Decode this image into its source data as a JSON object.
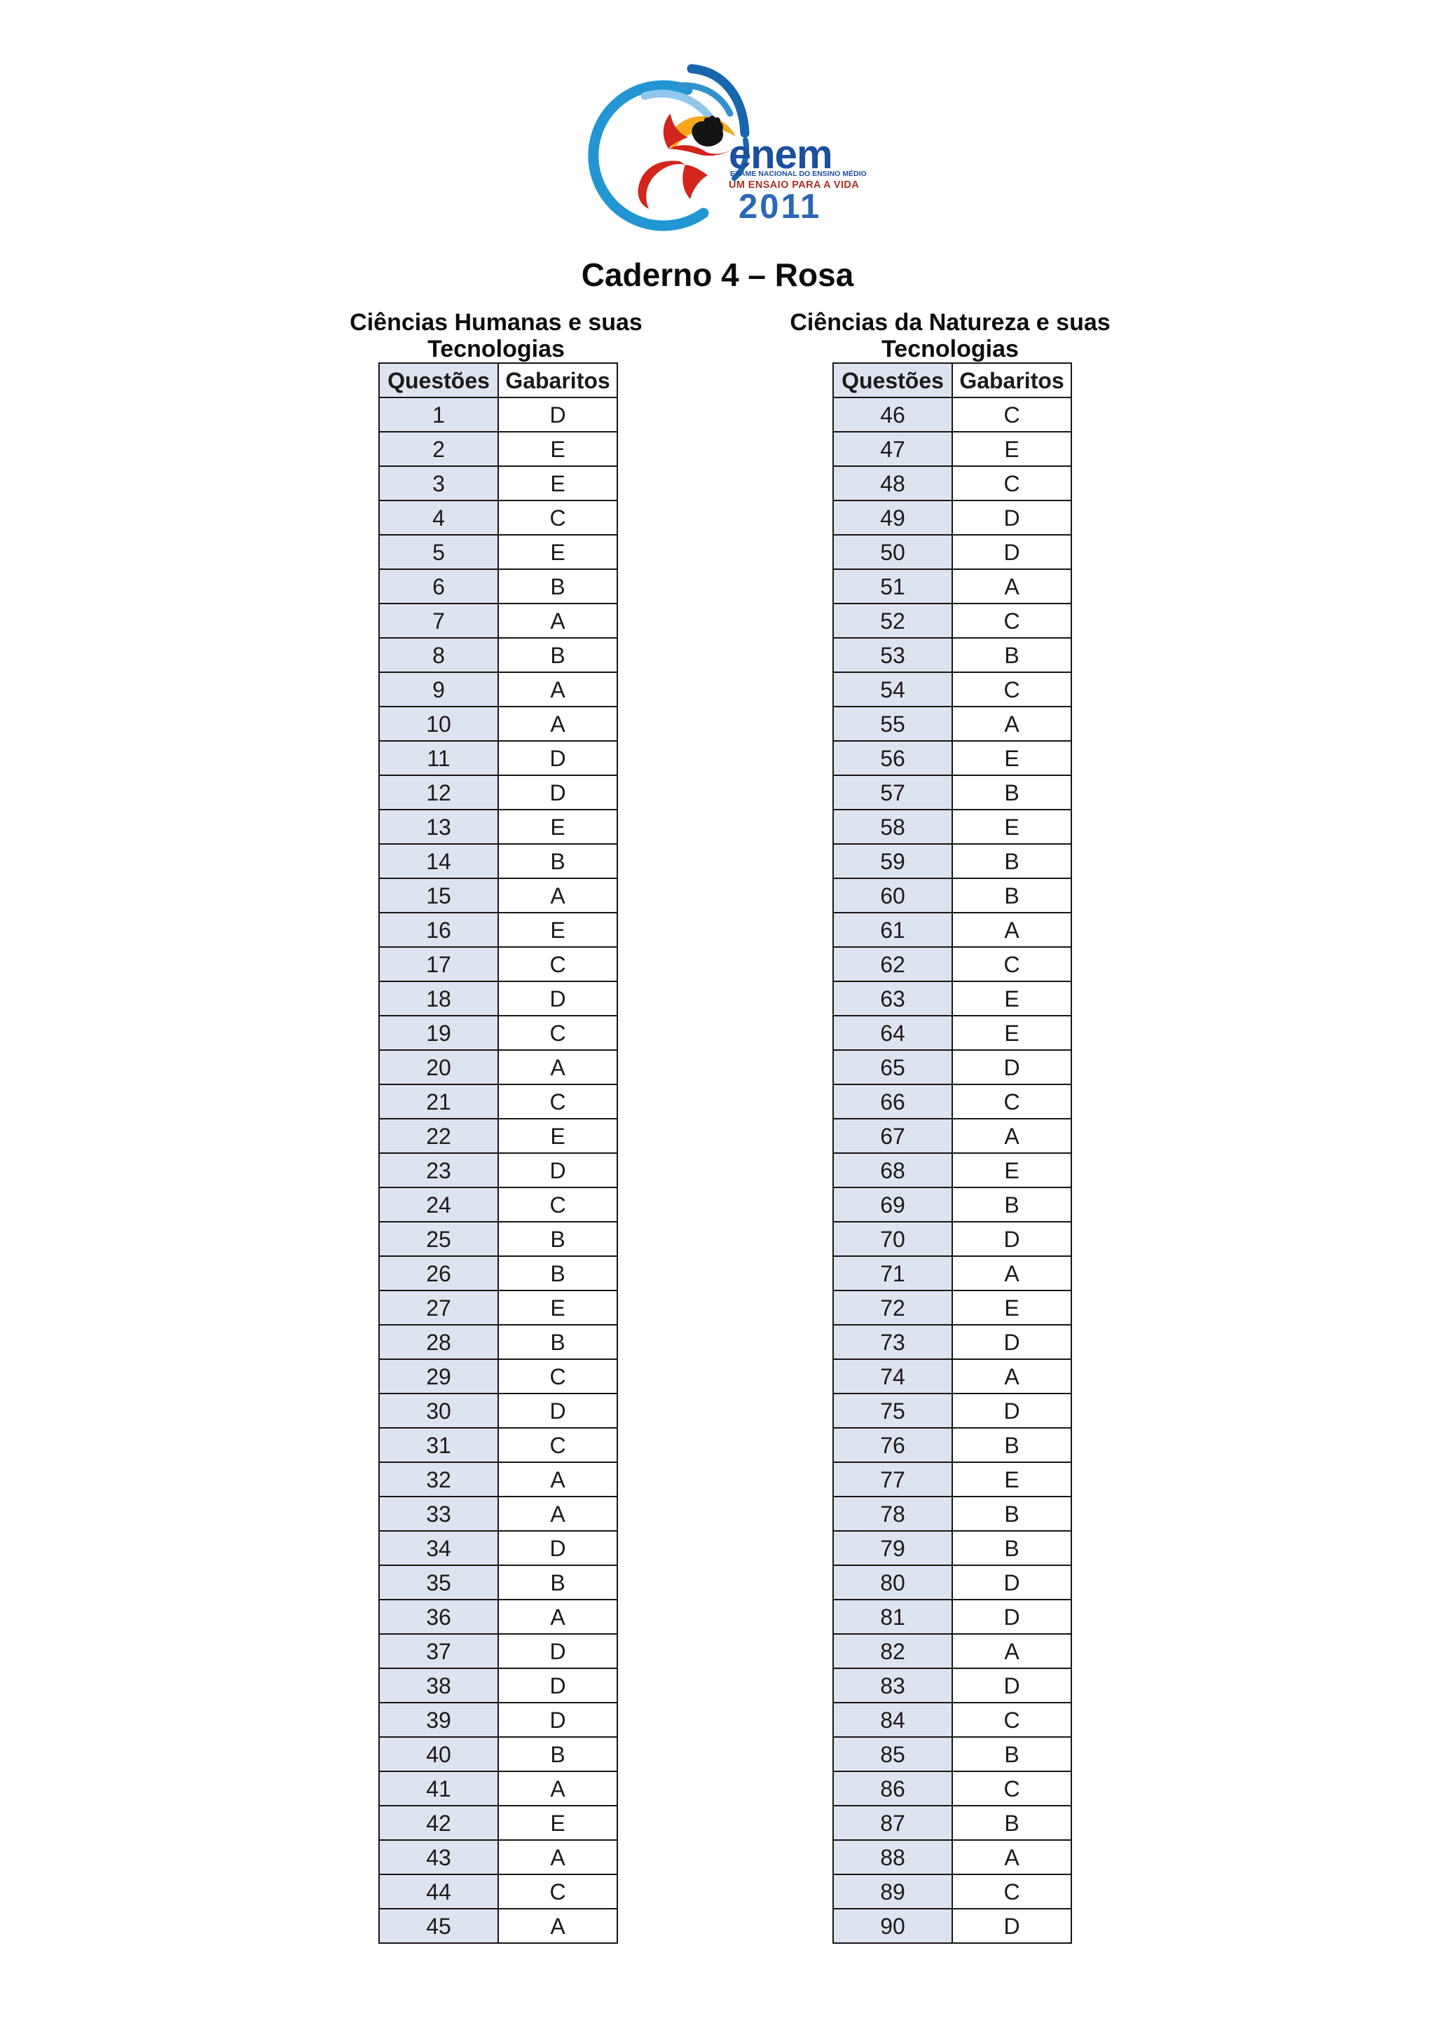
{
  "page": {
    "caderno_title": "Caderno 4 – Rosa"
  },
  "logo": {
    "wordmark": "enem",
    "subtitle1": "EXAME NACIONAL DO ENSINO MÉDIO",
    "subtitle2": "UM ENSAIO PARA A VIDA",
    "year": "2011",
    "colors": {
      "circle_blue": "#2196d3",
      "inner_arc_blue": "#8fc8ea",
      "swoosh_dark_blue": "#1766ae",
      "swoosh_mid_blue": "#3291cd",
      "wordmark_blue": "#1b509e",
      "subtitle_blue": "#1b509e",
      "subtitle_red": "#a93127",
      "year_blue": "#2a69b5",
      "figure_red": "#d2251b",
      "figure_yellow": "#f5a81c",
      "head_black": "#141414"
    }
  },
  "tables": [
    {
      "title_line1": "Ciências Humanas e suas",
      "title_line2": "Tecnologias",
      "columns": [
        "Questões",
        "Gabaritos"
      ],
      "rows": [
        [
          "1",
          "D"
        ],
        [
          "2",
          "E"
        ],
        [
          "3",
          "E"
        ],
        [
          "4",
          "C"
        ],
        [
          "5",
          "E"
        ],
        [
          "6",
          "B"
        ],
        [
          "7",
          "A"
        ],
        [
          "8",
          "B"
        ],
        [
          "9",
          "A"
        ],
        [
          "10",
          "A"
        ],
        [
          "11",
          "D"
        ],
        [
          "12",
          "D"
        ],
        [
          "13",
          "E"
        ],
        [
          "14",
          "B"
        ],
        [
          "15",
          "A"
        ],
        [
          "16",
          "E"
        ],
        [
          "17",
          "C"
        ],
        [
          "18",
          "D"
        ],
        [
          "19",
          "C"
        ],
        [
          "20",
          "A"
        ],
        [
          "21",
          "C"
        ],
        [
          "22",
          "E"
        ],
        [
          "23",
          "D"
        ],
        [
          "24",
          "C"
        ],
        [
          "25",
          "B"
        ],
        [
          "26",
          "B"
        ],
        [
          "27",
          "E"
        ],
        [
          "28",
          "B"
        ],
        [
          "29",
          "C"
        ],
        [
          "30",
          "D"
        ],
        [
          "31",
          "C"
        ],
        [
          "32",
          "A"
        ],
        [
          "33",
          "A"
        ],
        [
          "34",
          "D"
        ],
        [
          "35",
          "B"
        ],
        [
          "36",
          "A"
        ],
        [
          "37",
          "D"
        ],
        [
          "38",
          "D"
        ],
        [
          "39",
          "D"
        ],
        [
          "40",
          "B"
        ],
        [
          "41",
          "A"
        ],
        [
          "42",
          "E"
        ],
        [
          "43",
          "A"
        ],
        [
          "44",
          "C"
        ],
        [
          "45",
          "A"
        ]
      ]
    },
    {
      "title_line1": "Ciências da Natureza e suas",
      "title_line2": "Tecnologias",
      "columns": [
        "Questões",
        "Gabaritos"
      ],
      "rows": [
        [
          "46",
          "C"
        ],
        [
          "47",
          "E"
        ],
        [
          "48",
          "C"
        ],
        [
          "49",
          "D"
        ],
        [
          "50",
          "D"
        ],
        [
          "51",
          "A"
        ],
        [
          "52",
          "C"
        ],
        [
          "53",
          "B"
        ],
        [
          "54",
          "C"
        ],
        [
          "55",
          "A"
        ],
        [
          "56",
          "E"
        ],
        [
          "57",
          "B"
        ],
        [
          "58",
          "E"
        ],
        [
          "59",
          "B"
        ],
        [
          "60",
          "B"
        ],
        [
          "61",
          "A"
        ],
        [
          "62",
          "C"
        ],
        [
          "63",
          "E"
        ],
        [
          "64",
          "E"
        ],
        [
          "65",
          "D"
        ],
        [
          "66",
          "C"
        ],
        [
          "67",
          "A"
        ],
        [
          "68",
          "E"
        ],
        [
          "69",
          "B"
        ],
        [
          "70",
          "D"
        ],
        [
          "71",
          "A"
        ],
        [
          "72",
          "E"
        ],
        [
          "73",
          "D"
        ],
        [
          "74",
          "A"
        ],
        [
          "75",
          "D"
        ],
        [
          "76",
          "B"
        ],
        [
          "77",
          "E"
        ],
        [
          "78",
          "B"
        ],
        [
          "79",
          "B"
        ],
        [
          "80",
          "D"
        ],
        [
          "81",
          "D"
        ],
        [
          "82",
          "A"
        ],
        [
          "83",
          "D"
        ],
        [
          "84",
          "C"
        ],
        [
          "85",
          "B"
        ],
        [
          "86",
          "C"
        ],
        [
          "87",
          "B"
        ],
        [
          "88",
          "A"
        ],
        [
          "89",
          "C"
        ],
        [
          "90",
          "D"
        ]
      ]
    }
  ],
  "styles": {
    "question_cell_bg": "#dde4ef",
    "border_color": "#161616",
    "page_bg": "#ffffff",
    "text_color": "#1b1b1b"
  }
}
